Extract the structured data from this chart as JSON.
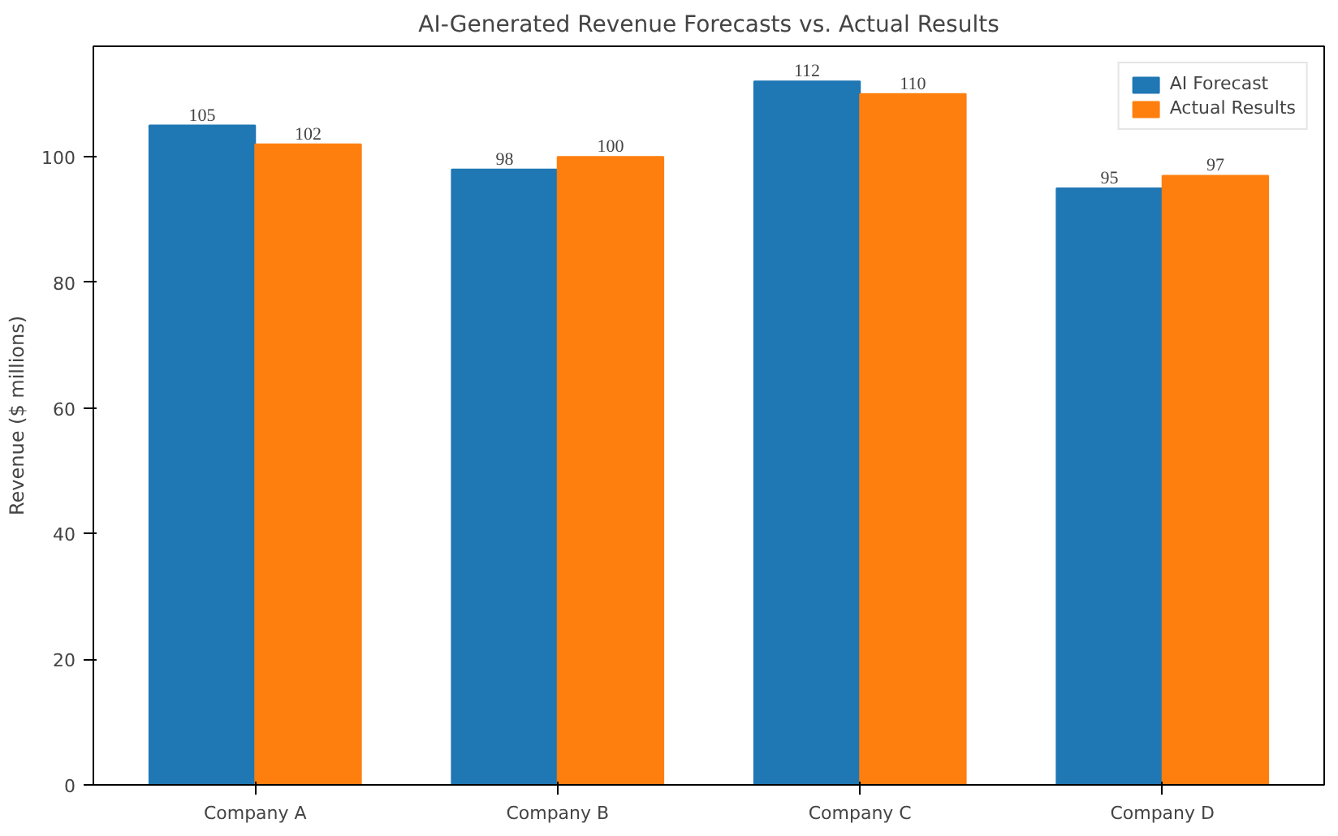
{
  "chart_data": {
    "type": "bar",
    "title": "AI-Generated Revenue Forecasts vs. Actual Results",
    "ylabel": "Revenue ($ millions)",
    "categories": [
      "Company A",
      "Company B",
      "Company C",
      "Company D"
    ],
    "series": [
      {
        "name": "AI Forecast",
        "color": "#1f77b4",
        "values": [
          105,
          98,
          112,
          95
        ]
      },
      {
        "name": "Actual Results",
        "color": "#ff7f0e",
        "values": [
          102,
          100,
          110,
          97
        ]
      }
    ],
    "ylim": [
      0,
      117.6
    ],
    "yticks": [
      0,
      20,
      40,
      60,
      80,
      100
    ],
    "grid": false,
    "legend": "top right",
    "data_labels": true
  }
}
